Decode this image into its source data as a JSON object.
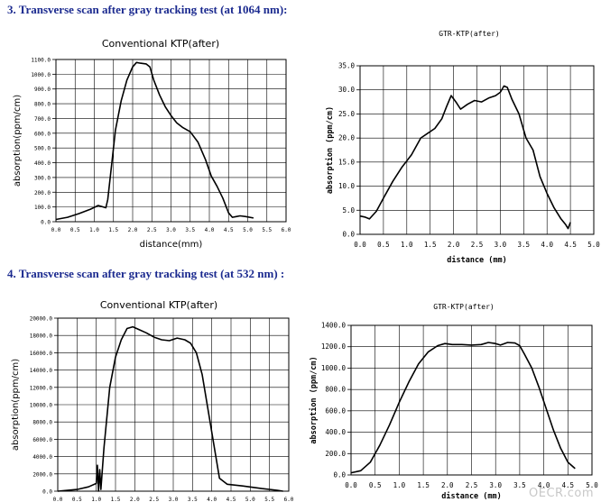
{
  "headings": {
    "sec3": "3.  Transverse scan after gray tracking test (at 1064 nm):",
    "sec4": "4.  Transverse scan after gray tracking test (at 532 nm) :"
  },
  "watermark": "OECR.com",
  "chart_data": [
    {
      "type": "line",
      "title": "Conventional  KTP(after)",
      "xlabel": "distance(mm)",
      "ylabel": "absorption(ppm/cm)",
      "xlim": [
        0,
        6
      ],
      "ylim": [
        0,
        1100
      ],
      "x_ticks": [
        "0.0",
        "0.5",
        "1.0",
        "1.5",
        "2.0",
        "2.5",
        "3.0",
        "3.5",
        "4.0",
        "4.5",
        "5.0",
        "5.5",
        "6.0"
      ],
      "y_ticks": [
        "0.0",
        "100.0",
        "200.0",
        "300.0",
        "400.0",
        "500.0",
        "600.0",
        "700.0",
        "800.0",
        "900.0",
        "1000.0",
        "1100.0"
      ],
      "grid": true,
      "series": [
        {
          "x": [
            0.0,
            0.3,
            0.6,
            0.9,
            1.1,
            1.3,
            1.35,
            1.45,
            1.55,
            1.7,
            1.85,
            2.0,
            2.1,
            2.2,
            2.35,
            2.45,
            2.55,
            2.7,
            2.85,
            3.0,
            3.15,
            3.3,
            3.5,
            3.7,
            3.9,
            4.05,
            4.2,
            4.35,
            4.5,
            4.6,
            4.7,
            4.8,
            4.95,
            5.15
          ],
          "y": [
            15,
            30,
            55,
            85,
            110,
            95,
            150,
            380,
            620,
            820,
            960,
            1050,
            1080,
            1075,
            1070,
            1050,
            960,
            860,
            780,
            720,
            670,
            640,
            610,
            540,
            420,
            310,
            240,
            160,
            60,
            30,
            35,
            40,
            35,
            25
          ]
        }
      ]
    },
    {
      "type": "line",
      "title": "GTR-KTP(after)",
      "xlabel": "distance (mm)",
      "ylabel": "absorption (ppm/cm)",
      "xlim": [
        0,
        5
      ],
      "ylim": [
        0,
        35
      ],
      "x_ticks": [
        "0.0",
        "0.5",
        "1.0",
        "1.5",
        "2.0",
        "2.5",
        "3.0",
        "3.5",
        "4.0",
        "4.5",
        "5.0"
      ],
      "y_ticks": [
        "0.0",
        "5.0",
        "10.0",
        "15.0",
        "20.0",
        "25.0",
        "30.0",
        "35.0"
      ],
      "grid": true,
      "series": [
        {
          "x": [
            0.0,
            0.1,
            0.2,
            0.35,
            0.5,
            0.7,
            0.9,
            1.1,
            1.3,
            1.45,
            1.6,
            1.75,
            1.85,
            1.95,
            2.05,
            2.15,
            2.3,
            2.45,
            2.6,
            2.75,
            2.9,
            3.0,
            3.08,
            3.15,
            3.25,
            3.4,
            3.55,
            3.7,
            3.85,
            4.0,
            4.15,
            4.3,
            4.4,
            4.45,
            4.5
          ],
          "y": [
            3.8,
            3.6,
            3.2,
            4.8,
            7.5,
            11.0,
            14.0,
            16.5,
            20.0,
            21.0,
            22.0,
            24.0,
            26.5,
            28.8,
            27.5,
            26.0,
            27.0,
            27.8,
            27.5,
            28.3,
            28.8,
            29.5,
            30.8,
            30.5,
            28.0,
            25.0,
            20.0,
            17.5,
            12.0,
            8.5,
            5.5,
            3.2,
            2.0,
            1.2,
            2.5
          ]
        }
      ]
    },
    {
      "type": "line",
      "title": "Conventional  KTP(after)",
      "xlabel": "distance(mm)",
      "ylabel": "absorption(ppm/cm)",
      "xlim": [
        0,
        6
      ],
      "ylim": [
        0,
        20000
      ],
      "x_ticks": [
        "0.0",
        "0.5",
        "1.0",
        "1.5",
        "2.0",
        "2.5",
        "3.0",
        "3.5",
        "4.0",
        "4.5",
        "5.0",
        "5.5",
        "6.0"
      ],
      "y_ticks": [
        "0.0",
        "2000.0",
        "4000.0",
        "6000.0",
        "8000.0",
        "10000.0",
        "12000.0",
        "14000.0",
        "16000.0",
        "18000.0",
        "20000.0"
      ],
      "grid": true,
      "series": [
        {
          "x": [
            0.0,
            0.5,
            0.8,
            1.0,
            1.03,
            1.06,
            1.09,
            1.12,
            1.2,
            1.35,
            1.5,
            1.65,
            1.8,
            1.95,
            2.1,
            2.3,
            2.5,
            2.7,
            2.9,
            3.1,
            3.3,
            3.45,
            3.6,
            3.75,
            3.9,
            4.05,
            4.2,
            4.4,
            4.8,
            5.3,
            5.7,
            5.85
          ],
          "y": [
            0,
            200,
            500,
            900,
            3000,
            0,
            2500,
            200,
            5000,
            12000,
            15500,
            17500,
            18800,
            19000,
            18700,
            18300,
            17800,
            17500,
            17400,
            17700,
            17500,
            17100,
            16000,
            13500,
            9500,
            5500,
            1500,
            800,
            600,
            300,
            100,
            0
          ]
        }
      ]
    },
    {
      "type": "line",
      "title": "GTR-KTP(after)",
      "xlabel": "distance (mm)",
      "ylabel": "absorption (ppm/cm)",
      "xlim": [
        0,
        5
      ],
      "ylim": [
        0,
        1400
      ],
      "x_ticks": [
        "0.0",
        "0.5",
        "1.0",
        "1.5",
        "2.0",
        "2.5",
        "3.0",
        "3.5",
        "4.0",
        "4.5",
        "5.0"
      ],
      "y_ticks": [
        "0.0",
        "200.0",
        "400.0",
        "600.0",
        "800.0",
        "1000.0",
        "1200.0",
        "1400.0"
      ],
      "grid": true,
      "series": [
        {
          "x": [
            0.0,
            0.2,
            0.4,
            0.6,
            0.8,
            1.0,
            1.2,
            1.4,
            1.6,
            1.8,
            1.95,
            2.1,
            2.3,
            2.5,
            2.7,
            2.85,
            3.0,
            3.1,
            3.25,
            3.4,
            3.5,
            3.6,
            3.75,
            3.9,
            4.05,
            4.2,
            4.35,
            4.5,
            4.65
          ],
          "y": [
            20,
            40,
            120,
            280,
            470,
            680,
            870,
            1040,
            1150,
            1210,
            1230,
            1220,
            1220,
            1215,
            1220,
            1240,
            1230,
            1215,
            1240,
            1235,
            1210,
            1130,
            1000,
            820,
            620,
            420,
            250,
            120,
            60
          ]
        }
      ]
    }
  ]
}
